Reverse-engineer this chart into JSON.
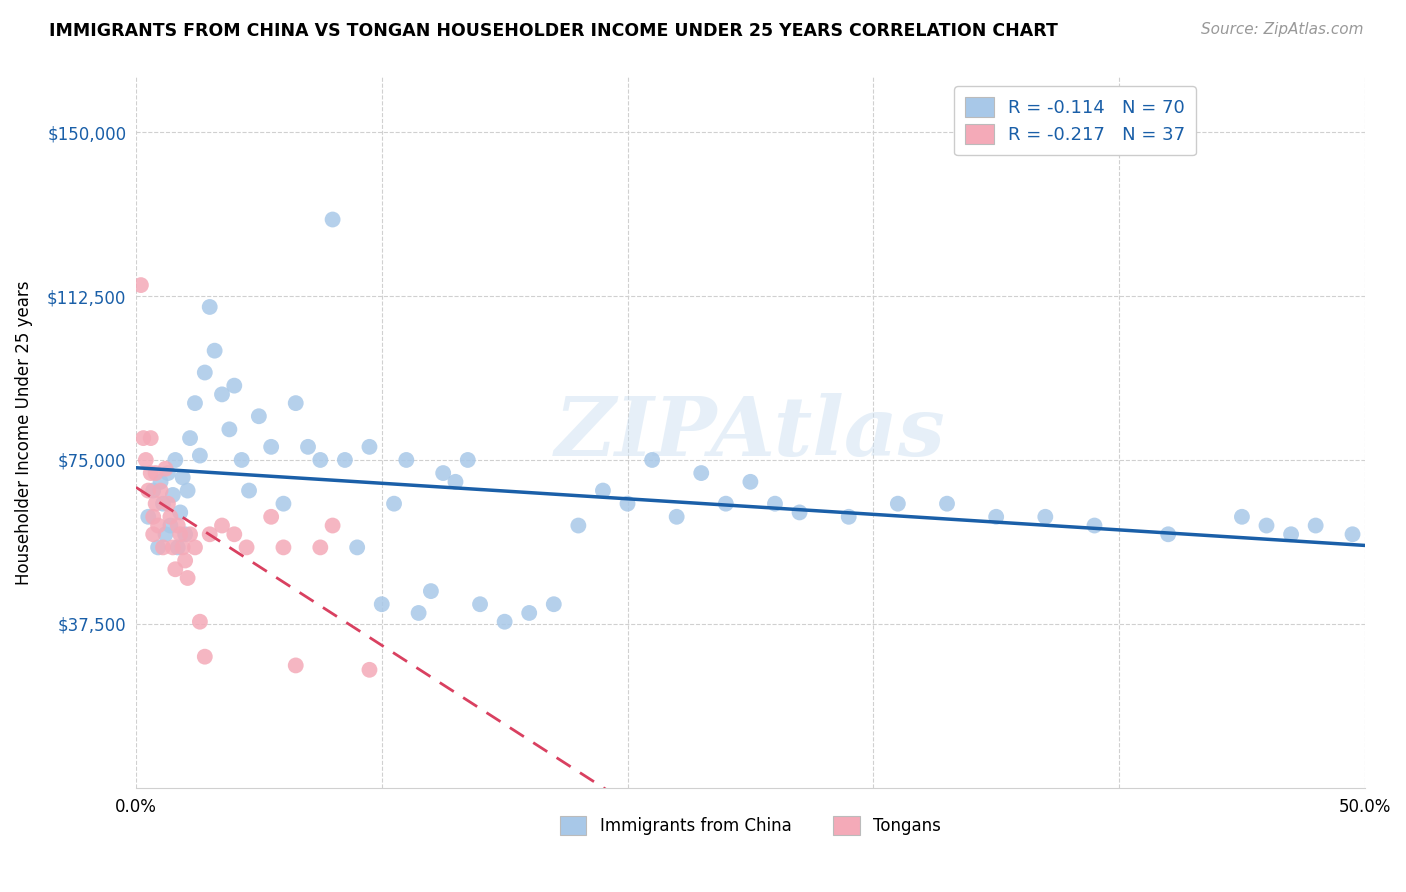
{
  "title": "IMMIGRANTS FROM CHINA VS TONGAN HOUSEHOLDER INCOME UNDER 25 YEARS CORRELATION CHART",
  "source": "Source: ZipAtlas.com",
  "ylabel": "Householder Income Under 25 years",
  "xlim": [
    0.0,
    0.5
  ],
  "ylim": [
    0,
    162500
  ],
  "ytick_values": [
    37500,
    75000,
    112500,
    150000
  ],
  "ytick_labels": [
    "$37,500",
    "$75,000",
    "$112,500",
    "$150,000"
  ],
  "xtick_positions": [
    0.0,
    0.1,
    0.2,
    0.3,
    0.4,
    0.5
  ],
  "xtick_labels": [
    "0.0%",
    "",
    "",
    "",
    "",
    "50.0%"
  ],
  "legend_china": "R = -0.114   N = 70",
  "legend_tonga": "R = -0.217   N = 37",
  "legend_bottom_china": "Immigrants from China",
  "legend_bottom_tonga": "Tongans",
  "china_color": "#a8c8e8",
  "tonga_color": "#f4aab8",
  "china_line_color": "#1a5fa8",
  "tonga_line_color": "#d94060",
  "watermark": "ZIPAtlas",
  "china_x": [
    0.005,
    0.007,
    0.009,
    0.01,
    0.011,
    0.012,
    0.013,
    0.014,
    0.015,
    0.016,
    0.017,
    0.018,
    0.019,
    0.02,
    0.021,
    0.022,
    0.024,
    0.026,
    0.028,
    0.03,
    0.032,
    0.035,
    0.038,
    0.04,
    0.043,
    0.046,
    0.05,
    0.055,
    0.06,
    0.065,
    0.07,
    0.075,
    0.08,
    0.085,
    0.09,
    0.095,
    0.1,
    0.105,
    0.11,
    0.115,
    0.12,
    0.125,
    0.13,
    0.135,
    0.14,
    0.15,
    0.16,
    0.17,
    0.18,
    0.19,
    0.2,
    0.21,
    0.22,
    0.23,
    0.24,
    0.25,
    0.26,
    0.27,
    0.29,
    0.31,
    0.33,
    0.35,
    0.37,
    0.39,
    0.42,
    0.45,
    0.46,
    0.47,
    0.48,
    0.495
  ],
  "china_y": [
    62000,
    68000,
    55000,
    70000,
    65000,
    58000,
    72000,
    60000,
    67000,
    75000,
    55000,
    63000,
    71000,
    58000,
    68000,
    80000,
    88000,
    76000,
    95000,
    110000,
    100000,
    90000,
    82000,
    92000,
    75000,
    68000,
    85000,
    78000,
    65000,
    88000,
    78000,
    75000,
    130000,
    75000,
    55000,
    78000,
    42000,
    65000,
    75000,
    40000,
    45000,
    72000,
    70000,
    75000,
    42000,
    38000,
    40000,
    42000,
    60000,
    68000,
    65000,
    75000,
    62000,
    72000,
    65000,
    70000,
    65000,
    63000,
    62000,
    65000,
    65000,
    62000,
    62000,
    60000,
    58000,
    62000,
    60000,
    58000,
    60000,
    58000
  ],
  "tonga_x": [
    0.002,
    0.003,
    0.004,
    0.005,
    0.006,
    0.006,
    0.007,
    0.007,
    0.008,
    0.008,
    0.009,
    0.01,
    0.011,
    0.012,
    0.013,
    0.014,
    0.015,
    0.016,
    0.017,
    0.018,
    0.019,
    0.02,
    0.021,
    0.022,
    0.024,
    0.026,
    0.028,
    0.03,
    0.035,
    0.04,
    0.045,
    0.055,
    0.06,
    0.065,
    0.075,
    0.08,
    0.095
  ],
  "tonga_y": [
    115000,
    80000,
    75000,
    68000,
    72000,
    80000,
    62000,
    58000,
    65000,
    72000,
    60000,
    68000,
    55000,
    73000,
    65000,
    62000,
    55000,
    50000,
    60000,
    58000,
    55000,
    52000,
    48000,
    58000,
    55000,
    38000,
    30000,
    58000,
    60000,
    58000,
    55000,
    62000,
    55000,
    28000,
    55000,
    60000,
    27000
  ]
}
